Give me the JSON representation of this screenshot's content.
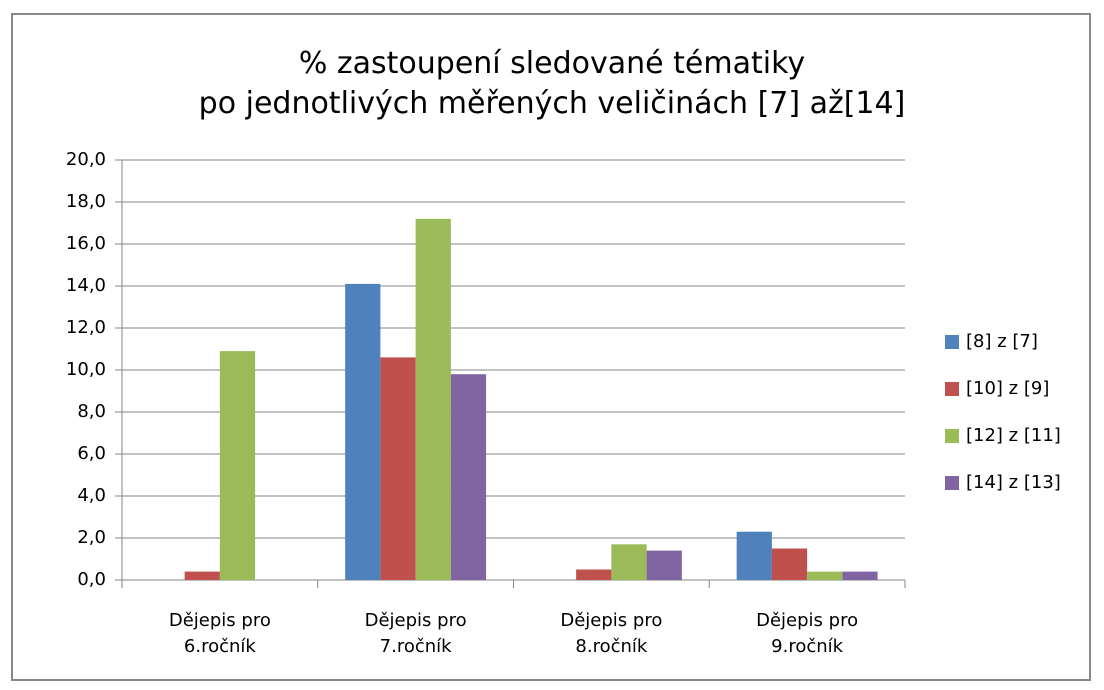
{
  "chart_data": {
    "type": "bar",
    "title": "% zastoupení sledované tématiky\npo jednotlivých měřených veličinách [7] až[14]",
    "categories": [
      "Dějepis pro\n6.ročník",
      "Dějepis pro\n7.ročník",
      "Dějepis pro\n8.ročník",
      "Dějepis pro\n9.ročník"
    ],
    "series": [
      {
        "name": "[8] z [7]",
        "color": "#4f81bd",
        "values": [
          0,
          14.1,
          0,
          2.3
        ]
      },
      {
        "name": "[10] z [9]",
        "color": "#c0504d",
        "values": [
          0.4,
          10.6,
          0.5,
          1.5
        ]
      },
      {
        "name": "[12] z [11]",
        "color": "#9bbb59",
        "values": [
          10.9,
          17.2,
          1.7,
          0.4
        ]
      },
      {
        "name": "[14] z [13]",
        "color": "#8064a2",
        "values": [
          0,
          9.8,
          1.4,
          0.4
        ]
      }
    ],
    "ylim": [
      0,
      20
    ],
    "yticks": [
      {
        "value": 0,
        "label": "0,0"
      },
      {
        "value": 2,
        "label": "2,0"
      },
      {
        "value": 4,
        "label": "4,0"
      },
      {
        "value": 6,
        "label": "6,0"
      },
      {
        "value": 8,
        "label": "8,0"
      },
      {
        "value": 10,
        "label": "10,0"
      },
      {
        "value": 12,
        "label": "12,0"
      },
      {
        "value": 14,
        "label": "14,0"
      },
      {
        "value": 16,
        "label": "16,0"
      },
      {
        "value": 18,
        "label": "18,0"
      },
      {
        "value": 20,
        "label": "20,0"
      }
    ],
    "grid": true,
    "legend": "right"
  }
}
